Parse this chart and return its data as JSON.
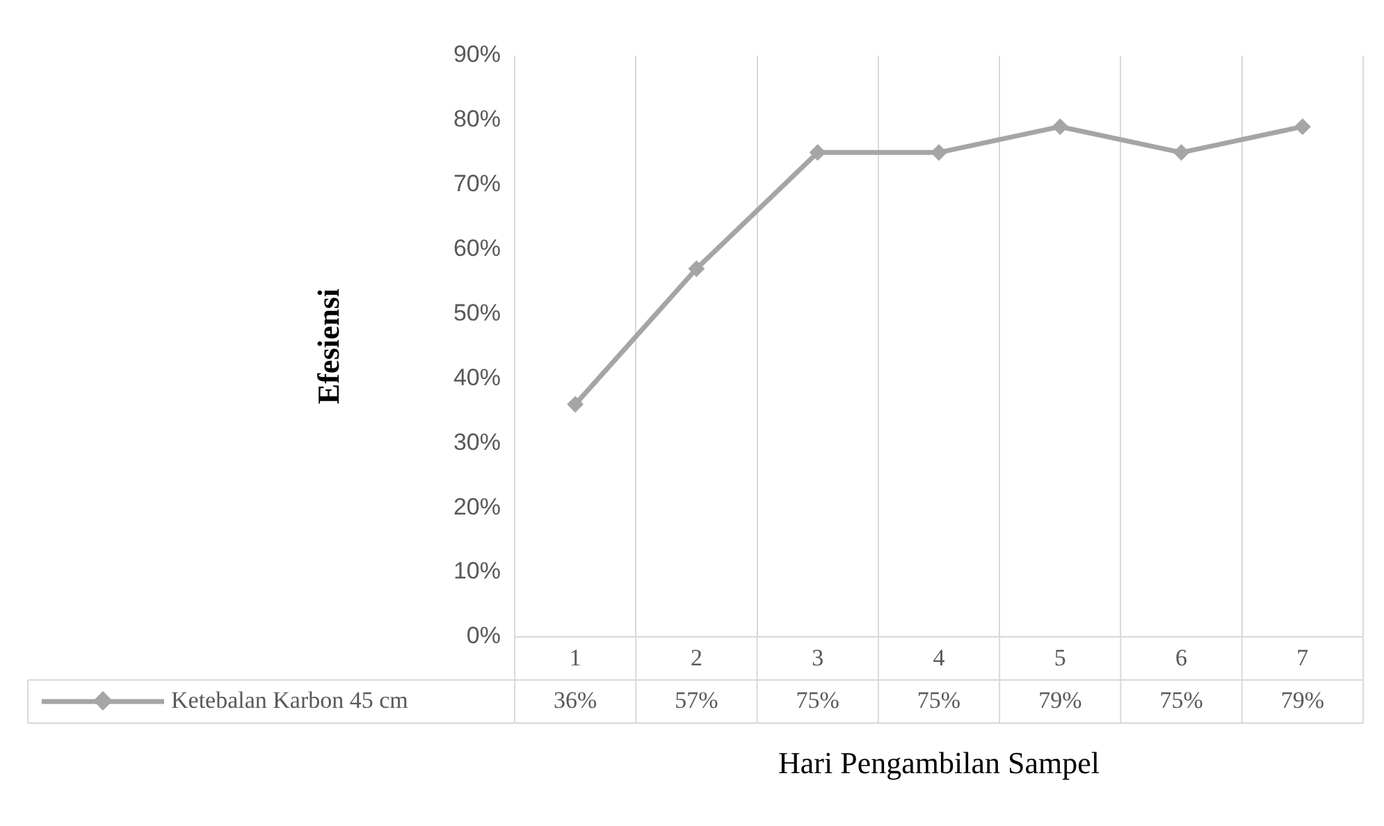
{
  "chart_data": {
    "type": "line",
    "xlabel": "Hari Pengambilan Sampel",
    "ylabel": "Efesiensi",
    "categories": [
      "1",
      "2",
      "3",
      "4",
      "5",
      "6",
      "7"
    ],
    "series": [
      {
        "name": "Ketebalan Karbon 45 cm",
        "color": "#a5a5a5",
        "values": [
          36,
          57,
          75,
          75,
          79,
          75,
          79
        ],
        "value_labels": [
          "36%",
          "57%",
          "75%",
          "75%",
          "79%",
          "75%",
          "79%"
        ]
      }
    ],
    "ylim": [
      0,
      90
    ],
    "yticks": [
      {
        "value": 0,
        "label": "0%"
      },
      {
        "value": 10,
        "label": "10%"
      },
      {
        "value": 20,
        "label": "20%"
      },
      {
        "value": 30,
        "label": "30%"
      },
      {
        "value": 40,
        "label": "40%"
      },
      {
        "value": 50,
        "label": "50%"
      },
      {
        "value": 60,
        "label": "60%"
      },
      {
        "value": 70,
        "label": "70%"
      },
      {
        "value": 80,
        "label": "80%"
      },
      {
        "value": 90,
        "label": "90%"
      }
    ],
    "grid": "x",
    "legend": "bottom",
    "marker": "diamond",
    "line_style": "solid"
  }
}
